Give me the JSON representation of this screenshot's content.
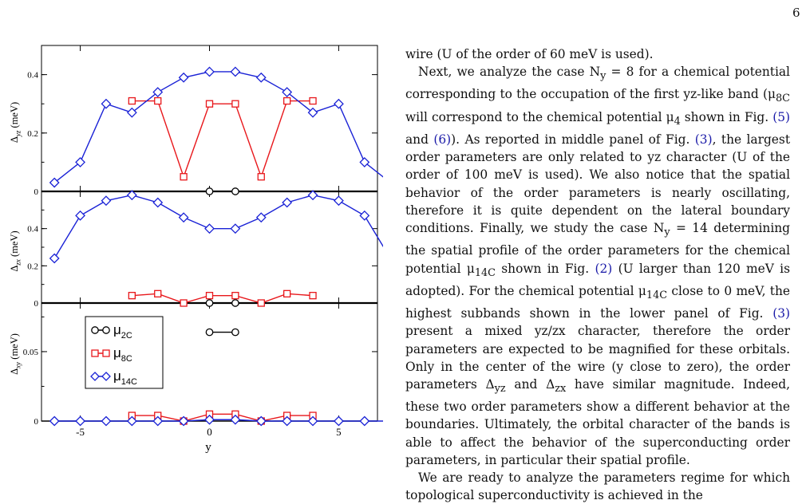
{
  "page_number": "6",
  "figure": {
    "x_label": "y",
    "x_ticks": [
      "-5",
      "0",
      "5"
    ],
    "panels": [
      {
        "id": "yz",
        "ylabel": "Δyz (meV)",
        "ylabel_base": "Δ",
        "ylabel_sub": "yz",
        "ylabel_unit": " (meV)",
        "y_ticks": [
          "0",
          "0.2",
          "0.4"
        ]
      },
      {
        "id": "zx",
        "ylabel": "Δzx (meV)",
        "ylabel_base": "Δ",
        "ylabel_sub": "zx",
        "ylabel_unit": " (meV)",
        "y_ticks": [
          "0",
          "0.2",
          "0.4"
        ]
      },
      {
        "id": "xy",
        "ylabel": "Δxy (meV)",
        "ylabel_base": "Δ",
        "ylabel_sub": "xy",
        "ylabel_unit": " (meV)",
        "y_ticks": [
          "0",
          "0.05"
        ]
      }
    ],
    "legend": [
      {
        "label": "μ2C",
        "base": "μ",
        "sub": "2C",
        "color": "#000000",
        "marker": "circle"
      },
      {
        "label": "μ8C",
        "base": "μ",
        "sub": "8C",
        "color": "#e8171b",
        "marker": "square"
      },
      {
        "label": "μ14C",
        "base": "μ",
        "sub": "14C",
        "color": "#1a22d6",
        "marker": "diamond"
      }
    ]
  },
  "chart_data": [
    {
      "type": "line",
      "panel": "top",
      "ylabel": "Δyz (meV)",
      "xlabel": "",
      "xlim": [
        -6.5,
        6.5
      ],
      "ylim": [
        0,
        0.5
      ],
      "series": [
        {
          "name": "μ2C",
          "x": [
            0,
            1
          ],
          "y": [
            0.0,
            0.0
          ]
        },
        {
          "name": "μ8C",
          "x": [
            -3,
            -2,
            -1,
            0,
            1,
            2,
            3,
            4
          ],
          "y": [
            0.31,
            0.31,
            0.05,
            0.3,
            0.3,
            0.05,
            0.31,
            0.31
          ]
        },
        {
          "name": "μ14C",
          "x": [
            -6,
            -5,
            -4,
            -3,
            -2,
            -1,
            0,
            1,
            2,
            3,
            4,
            5,
            6,
            7
          ],
          "y": [
            0.03,
            0.1,
            0.3,
            0.27,
            0.34,
            0.39,
            0.41,
            0.41,
            0.39,
            0.34,
            0.27,
            0.3,
            0.1,
            0.03
          ]
        }
      ]
    },
    {
      "type": "line",
      "panel": "middle",
      "ylabel": "Δzx (meV)",
      "xlabel": "",
      "xlim": [
        -6.5,
        6.5
      ],
      "ylim": [
        0,
        0.6
      ],
      "series": [
        {
          "name": "μ2C",
          "x": [
            0,
            1
          ],
          "y": [
            0.0,
            0.0
          ]
        },
        {
          "name": "μ8C",
          "x": [
            -3,
            -2,
            -1,
            0,
            1,
            2,
            3,
            4
          ],
          "y": [
            0.04,
            0.05,
            0.0,
            0.04,
            0.04,
            0.0,
            0.05,
            0.04
          ]
        },
        {
          "name": "μ14C",
          "x": [
            -6,
            -5,
            -4,
            -3,
            -2,
            -1,
            0,
            1,
            2,
            3,
            4,
            5,
            6,
            7
          ],
          "y": [
            0.24,
            0.47,
            0.55,
            0.58,
            0.54,
            0.46,
            0.4,
            0.4,
            0.46,
            0.54,
            0.58,
            0.55,
            0.47,
            0.24
          ]
        }
      ]
    },
    {
      "type": "line",
      "panel": "bottom",
      "ylabel": "Δxy (meV)",
      "xlabel": "y",
      "xlim": [
        -6.5,
        6.5
      ],
      "ylim": [
        0,
        0.085
      ],
      "series": [
        {
          "name": "μ2C",
          "x": [
            0,
            1
          ],
          "y": [
            0.064,
            0.064
          ]
        },
        {
          "name": "μ8C",
          "x": [
            -3,
            -2,
            -1,
            0,
            1,
            2,
            3,
            4
          ],
          "y": [
            0.004,
            0.004,
            0.0,
            0.005,
            0.005,
            0.0,
            0.004,
            0.004
          ]
        },
        {
          "name": "μ14C",
          "x": [
            -6,
            -5,
            -4,
            -3,
            -2,
            -1,
            0,
            1,
            2,
            3,
            4,
            5,
            6,
            7
          ],
          "y": [
            0,
            0,
            0,
            0,
            0,
            0,
            0.001,
            0.001,
            0,
            0,
            0,
            0,
            0,
            0
          ]
        }
      ]
    }
  ],
  "text": {
    "p1": "wire (U of the order of 60 meV is used).",
    "p2_a": "Next, we analyze the case N",
    "p2_sub_y": "y",
    "p2_b": " = 8 for a chemical potential corresponding to the occupation of the first yz-like band (μ",
    "p2_sub_8c": "8C",
    "p2_c": " will correspond to the chemical potential μ",
    "p2_sub_4": "4",
    "p2_d": " shown in Fig. ",
    "ref_5": "(5)",
    "p2_e": " and ",
    "ref_6": "(6)",
    "p2_f": "). As reported in middle panel of Fig. ",
    "ref_3a": "(3)",
    "p2_g": ", the largest order parameters are only related to yz character (U of the order of 100 meV is used). We also notice that the spatial behavior of the order parameters is nearly oscillating, therefore it is quite dependent on the lateral boundary conditions. Finally, we study the case N",
    "p2_h": " = 14 determining the spatial profile of the order parameters for the chemical potential μ",
    "p2_sub_14c": "14C",
    "p2_i": " shown in Fig. ",
    "ref_2": "(2)",
    "p2_j": " (U larger than 120 meV is adopted). For the chemical potential μ",
    "p2_k": " close to 0 meV, the highest subbands shown in the lower panel of Fig. ",
    "ref_3b": "(3)",
    "p2_l": " present a mixed yz/zx character, therefore the order parameters are expected to be magnified for these orbitals. Only in the center of the wire (y close to zero), the order parameters Δ",
    "p2_sub_yz": "yz",
    "p2_m": " and Δ",
    "p2_sub_zx": "zx",
    "p2_n": " have similar magnitude. Indeed, these two order parameters show a different behavior at the boundaries. Ultimately, the orbital character of the bands is able to affect the behavior of the superconducting order parameters, in particular their spatial profile.",
    "p3": "We are ready to analyze the parameters regime for which topological superconductivity is achieved in the"
  }
}
